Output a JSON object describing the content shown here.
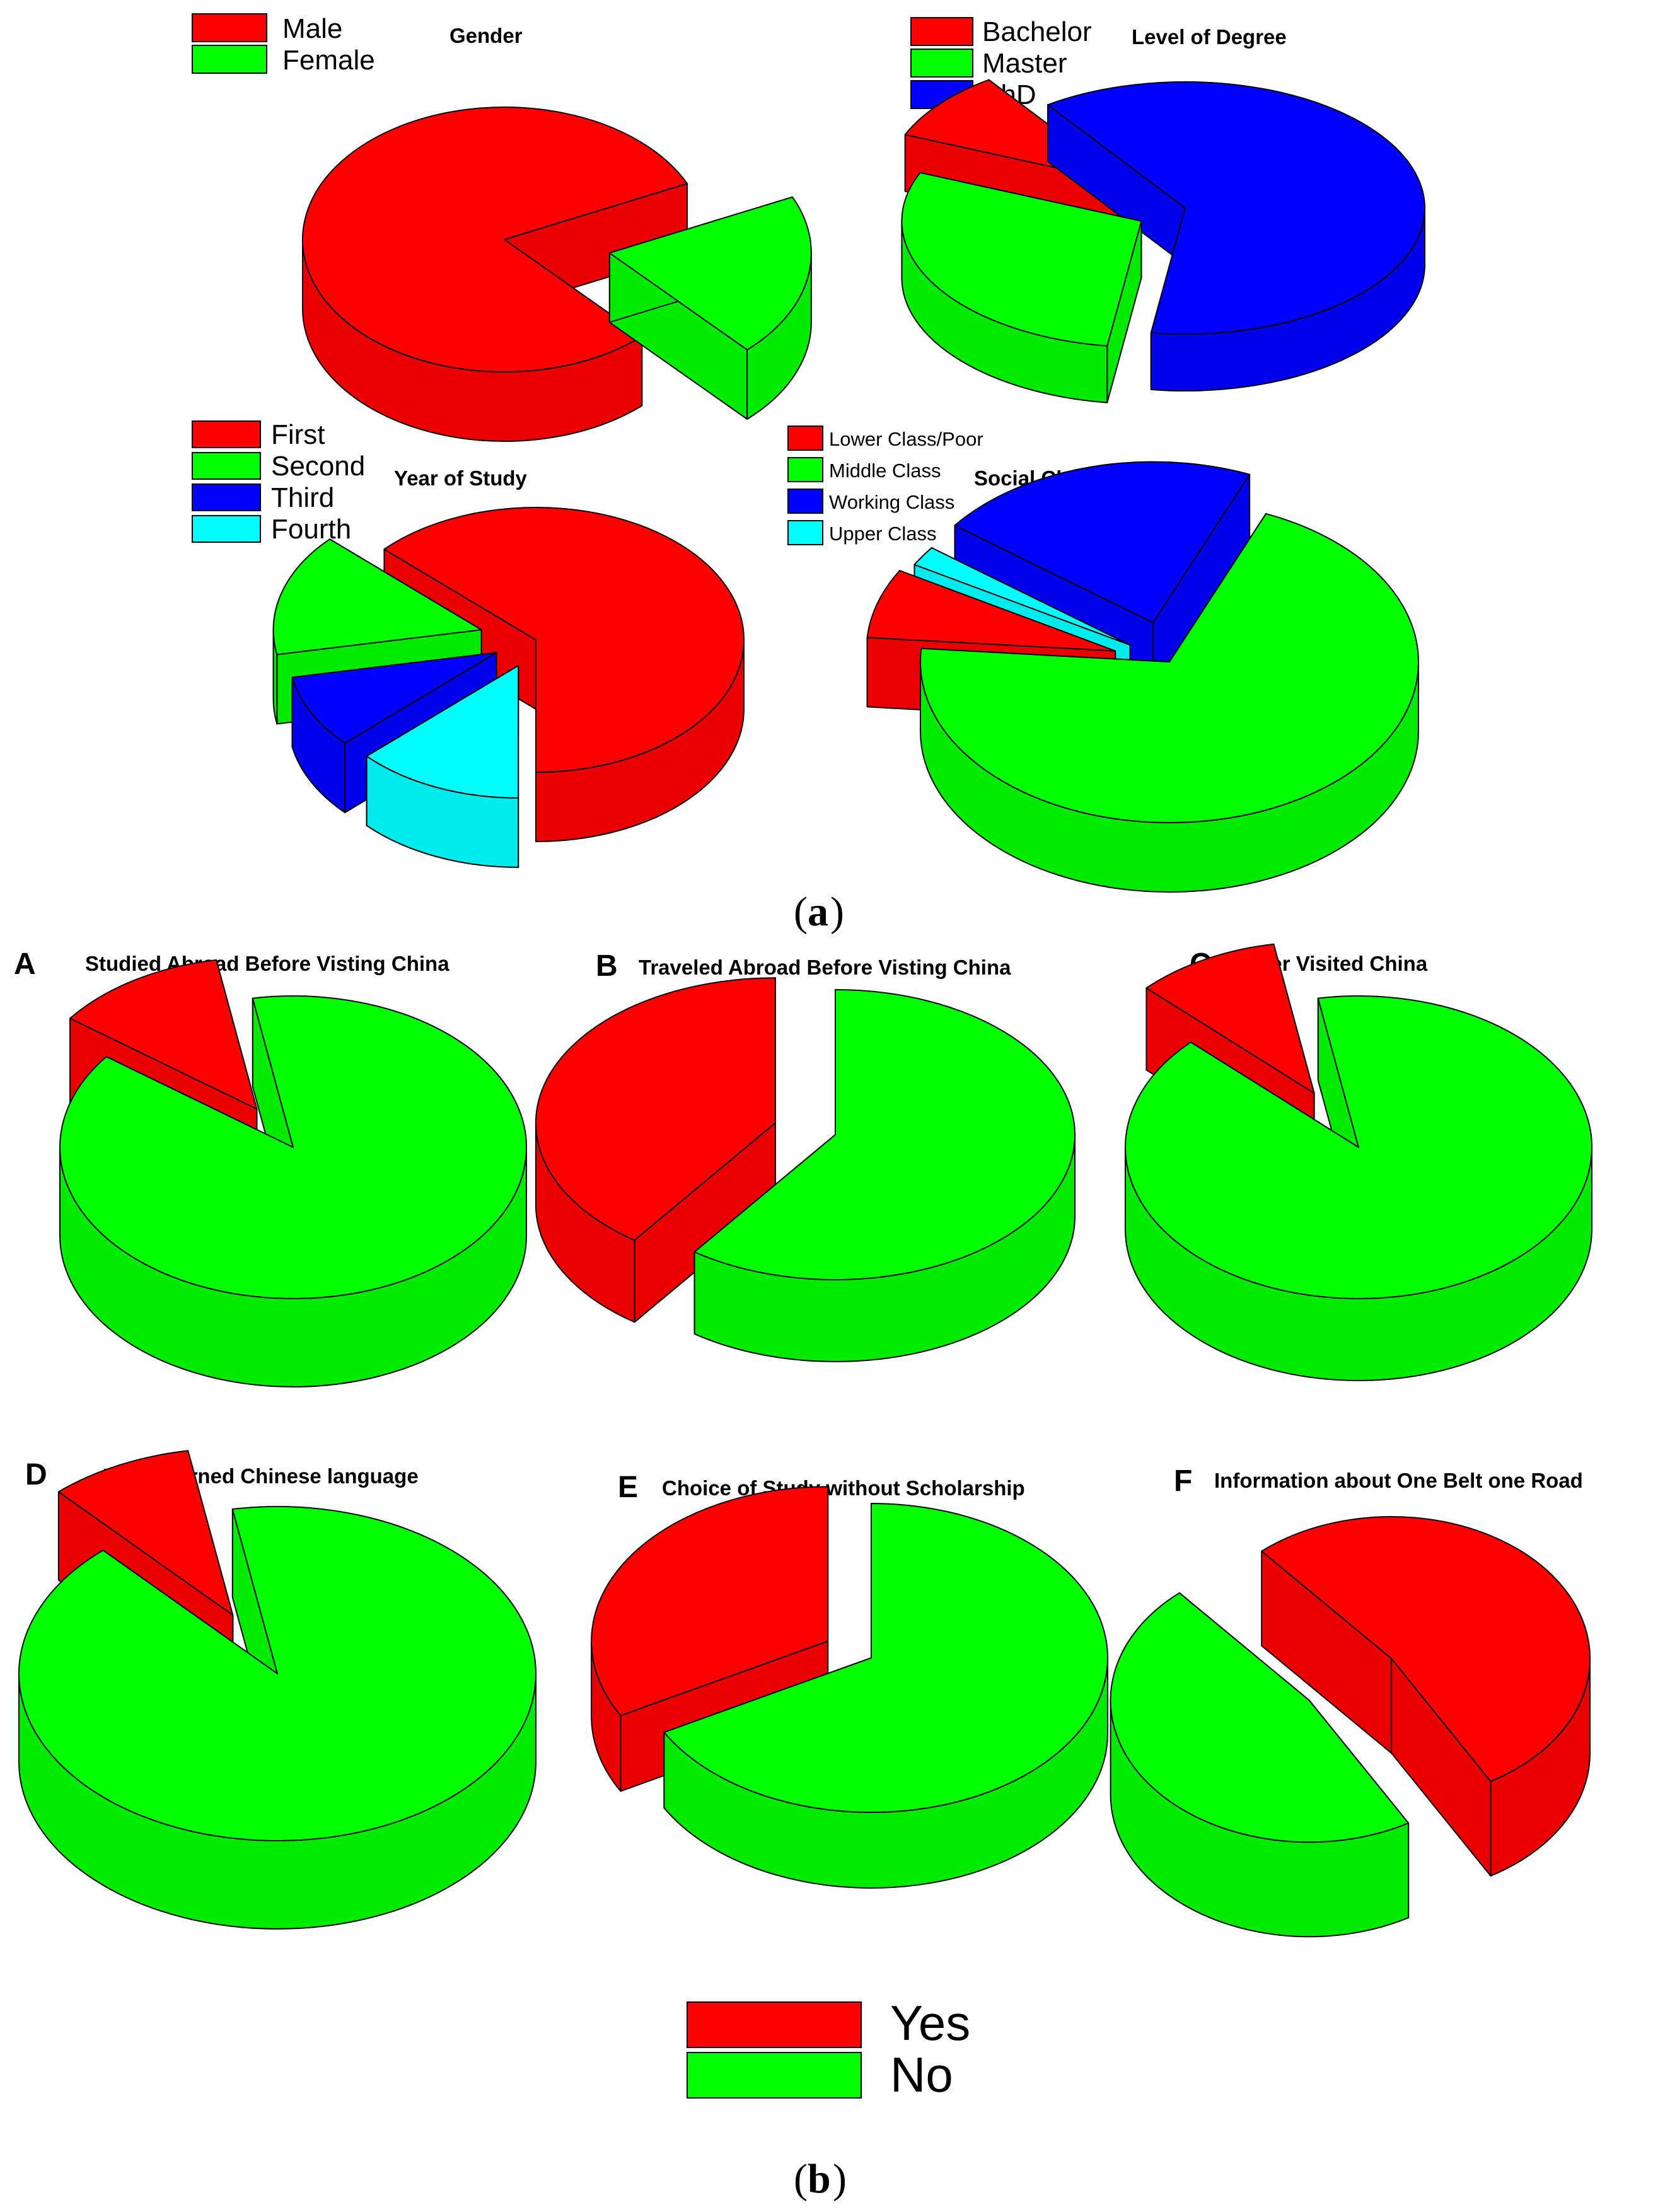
{
  "colors": {
    "red": "#ff0000",
    "green": "#00ff00",
    "blue": "#0000ff",
    "cyan": "#00ffff",
    "outline": "#000000"
  },
  "captions": {
    "a": "a",
    "b": "b"
  },
  "legend_b": {
    "yes": "Yes",
    "no": "No"
  },
  "chart_data": [
    {
      "type": "pie",
      "style": "3d-exploded",
      "title": "Gender",
      "categories": [
        "Male",
        "Female"
      ],
      "values": [
        80,
        20
      ],
      "colors": [
        "#ff0000",
        "#00ff00"
      ],
      "legend": "top-left"
    },
    {
      "type": "pie",
      "style": "3d-exploded",
      "title": "Level of Degree",
      "categories": [
        "Bachelor",
        "Master",
        "PhD"
      ],
      "values": [
        9,
        29,
        62
      ],
      "colors": [
        "#ff0000",
        "#00ff00",
        "#0000ff"
      ],
      "legend": "top-left"
    },
    {
      "type": "pie",
      "style": "3d-exploded",
      "title": "Year of Study",
      "categories": [
        "First",
        "Second",
        "Third",
        "Fourth"
      ],
      "values": [
        63,
        15,
        9,
        13
      ],
      "colors": [
        "#ff0000",
        "#00ff00",
        "#0000ff",
        "#00ffff"
      ],
      "legend": "top-left"
    },
    {
      "type": "pie",
      "style": "3d-exploded",
      "title": "Social Class",
      "categories": [
        "Lower Class/Poor",
        "Middle Class",
        "Working Class",
        "Upper Class"
      ],
      "values": [
        7,
        70,
        21,
        2
      ],
      "colors": [
        "#ff0000",
        "#00ff00",
        "#0000ff",
        "#00ffff"
      ],
      "legend": "top-left"
    },
    {
      "type": "pie",
      "style": "3d-exploded",
      "panel": "A",
      "title": "Studied Abroad Before Visting China",
      "categories": [
        "Yes",
        "No"
      ],
      "values": [
        12,
        88
      ],
      "colors": [
        "#ff0000",
        "#00ff00"
      ]
    },
    {
      "type": "pie",
      "style": "3d-exploded",
      "panel": "B",
      "title": "Traveled Abroad Before Visting China",
      "categories": [
        "Yes",
        "No"
      ],
      "values": [
        40,
        60
      ],
      "colors": [
        "#ff0000",
        "#00ff00"
      ]
    },
    {
      "type": "pie",
      "style": "3d-exploded",
      "panel": "C",
      "title": "Ever Visited China",
      "categories": [
        "Yes",
        "No"
      ],
      "values": [
        10,
        90
      ],
      "colors": [
        "#ff0000",
        "#00ff00"
      ]
    },
    {
      "type": "pie",
      "style": "3d-exploded",
      "panel": "D",
      "title": "Ever Learned Chinese language",
      "categories": [
        "Yes",
        "No"
      ],
      "values": [
        9,
        91
      ],
      "colors": [
        "#ff0000",
        "#00ff00"
      ]
    },
    {
      "type": "pie",
      "style": "3d-exploded",
      "panel": "E",
      "title": "Choice of Study without Scholarship",
      "categories": [
        "Yes",
        "No"
      ],
      "values": [
        33,
        67
      ],
      "colors": [
        "#ff0000",
        "#00ff00"
      ]
    },
    {
      "type": "pie",
      "style": "3d-exploded",
      "panel": "F",
      "title": "Information about One Belt one Road",
      "categories": [
        "Yes",
        "No"
      ],
      "values": [
        53,
        47
      ],
      "colors": [
        "#ff0000",
        "#00ff00"
      ]
    }
  ]
}
